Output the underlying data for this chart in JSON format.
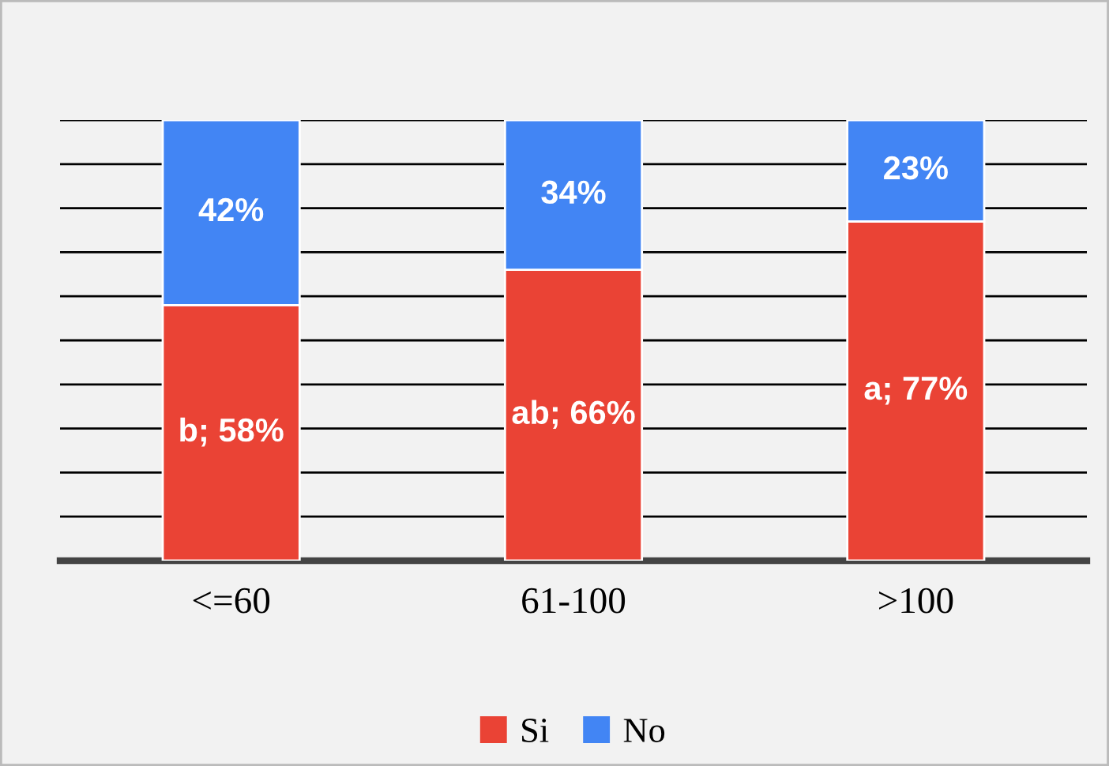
{
  "chart_data": {
    "type": "bar",
    "stacked": true,
    "categories": [
      "<=60",
      "61-100",
      ">100"
    ],
    "series": [
      {
        "name": "Si",
        "color": "#ea4335",
        "values": [
          58,
          66,
          77
        ],
        "value_labels": [
          "b; 58%",
          "ab; 66%",
          "a; 77%"
        ]
      },
      {
        "name": "No",
        "color": "#4285f4",
        "values": [
          42,
          34,
          23
        ],
        "value_labels": [
          "42%",
          "34%",
          "23%"
        ]
      }
    ],
    "ylim": [
      0,
      100
    ],
    "yticks": [
      {
        "value": 0,
        "label": null
      },
      {
        "value": 10,
        "label": null
      },
      {
        "value": 20,
        "label": null
      },
      {
        "value": 30,
        "label": null
      },
      {
        "value": 40,
        "label": null
      },
      {
        "value": 50,
        "label": null
      },
      {
        "value": 60,
        "label": null
      },
      {
        "value": 70,
        "label": null
      },
      {
        "value": 80,
        "label": null
      },
      {
        "value": 90,
        "label": null
      },
      {
        "value": 100,
        "label": null
      }
    ],
    "tick_labels": "x",
    "grid": "y",
    "legend": "bottom"
  }
}
